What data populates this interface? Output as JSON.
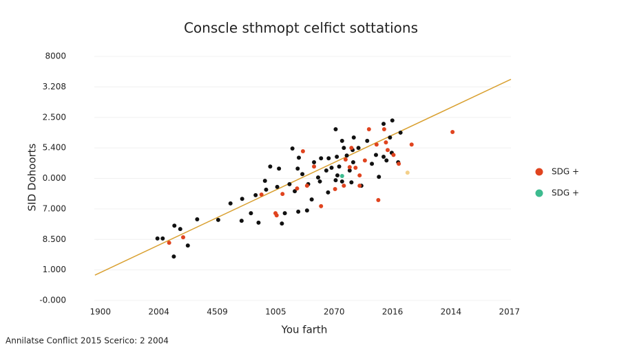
{
  "chart_data": {
    "type": "scatter",
    "title": "Conscle sthmopt celfict sottations",
    "x_label": "You farth",
    "y_label": "SID Dohoorts",
    "footer": "Annilatse Conflict 2015 Scerico: 2 2004",
    "xlim": [
      -0.08,
      7.05
    ],
    "ylim": [
      0,
      8
    ],
    "xticks": [
      {
        "value": 0,
        "label": "1900"
      },
      {
        "value": 1,
        "label": "2004"
      },
      {
        "value": 2,
        "label": "4509"
      },
      {
        "value": 3,
        "label": "1005"
      },
      {
        "value": 4,
        "label": "2070"
      },
      {
        "value": 5,
        "label": "2016"
      },
      {
        "value": 6,
        "label": "2014"
      },
      {
        "value": 7,
        "label": "2017"
      }
    ],
    "yticks": [
      {
        "value": 0,
        "label": "-0.000"
      },
      {
        "value": 1,
        "label": "1.000"
      },
      {
        "value": 2,
        "label": "8.500"
      },
      {
        "value": 3,
        "label": "7.000"
      },
      {
        "value": 4,
        "label": "0.000"
      },
      {
        "value": 5,
        "label": "5.400"
      },
      {
        "value": 6,
        "label": "2.500"
      },
      {
        "value": 7,
        "label": "3.208"
      },
      {
        "value": 8,
        "label": "8000"
      }
    ],
    "grid": true,
    "series": [
      {
        "color": "#111111",
        "x": [
          1.0,
          1.09,
          1.29,
          1.39,
          1.52,
          1.28,
          1.68,
          2.04,
          2.25,
          2.45,
          2.44,
          2.6,
          2.73,
          2.68,
          2.86,
          2.84,
          2.93,
          3.08,
          3.05,
          3.18,
          3.13,
          3.26,
          3.31,
          3.4,
          3.42,
          3.48,
          3.35,
          3.41,
          3.56,
          3.58,
          3.64,
          3.68,
          3.78,
          3.8,
          3.75,
          3.93,
          3.89,
          3.92,
          3.98,
          4.05,
          4.05,
          4.07,
          4.11,
          4.16,
          4.19,
          4.16,
          4.24,
          4.29,
          4.32,
          4.34,
          4.36,
          4.35,
          4.44,
          4.49,
          4.59,
          4.67,
          4.74,
          4.79,
          4.87,
          4.87,
          4.98,
          4.92,
          5.01,
          5.02,
          5.12,
          5.16,
          4.08
        ],
        "values": [
          2.03,
          2.03,
          2.45,
          2.34,
          1.8,
          1.44,
          2.66,
          2.64,
          3.18,
          3.33,
          2.61,
          2.86,
          2.55,
          3.45,
          3.63,
          3.92,
          4.39,
          4.32,
          3.72,
          2.86,
          2.52,
          3.81,
          4.98,
          4.32,
          4.68,
          4.14,
          3.58,
          2.91,
          2.95,
          3.81,
          3.31,
          4.53,
          3.9,
          4.66,
          4.03,
          4.66,
          4.26,
          3.54,
          4.35,
          5.61,
          3.94,
          4.71,
          4.39,
          5.23,
          5.0,
          3.9,
          4.75,
          4.26,
          3.87,
          4.93,
          5.34,
          4.53,
          5.0,
          3.76,
          5.23,
          4.48,
          4.77,
          4.05,
          4.71,
          5.79,
          5.34,
          4.59,
          4.84,
          5.9,
          4.53,
          5.5,
          4.1
        ]
      },
      {
        "name": "SDG +",
        "color": "#e0441f",
        "x": [
          1.2,
          1.44,
          2.78,
          3.02,
          3.14,
          3.39,
          3.49,
          3.56,
          3.68,
          3.8,
          4.04,
          4.19,
          4.22,
          4.32,
          4.29,
          4.39,
          4.46,
          4.46,
          4.62,
          4.55,
          4.75,
          4.88,
          4.91,
          4.94,
          5.04,
          5.13,
          5.35,
          6.05,
          4.78,
          3.04
        ],
        "values": [
          1.89,
          2.07,
          3.47,
          2.86,
          3.49,
          3.67,
          4.89,
          3.76,
          4.39,
          3.09,
          3.65,
          3.76,
          4.62,
          5.0,
          4.37,
          4.35,
          4.1,
          3.76,
          5.61,
          4.59,
          5.11,
          5.61,
          5.18,
          4.93,
          4.77,
          4.48,
          5.11,
          5.52,
          3.29,
          2.79
        ]
      },
      {
        "name": "SDG +",
        "color": "#3dbb8f",
        "x": [
          4.16
        ],
        "values": [
          4.08
        ]
      },
      {
        "color": "#f3d08a",
        "x": [
          5.28
        ],
        "values": [
          4.19
        ]
      }
    ],
    "trendline": {
      "color": "#d9a030",
      "x": [
        -0.07,
        7.05
      ],
      "values": [
        0.83,
        7.25
      ]
    }
  }
}
